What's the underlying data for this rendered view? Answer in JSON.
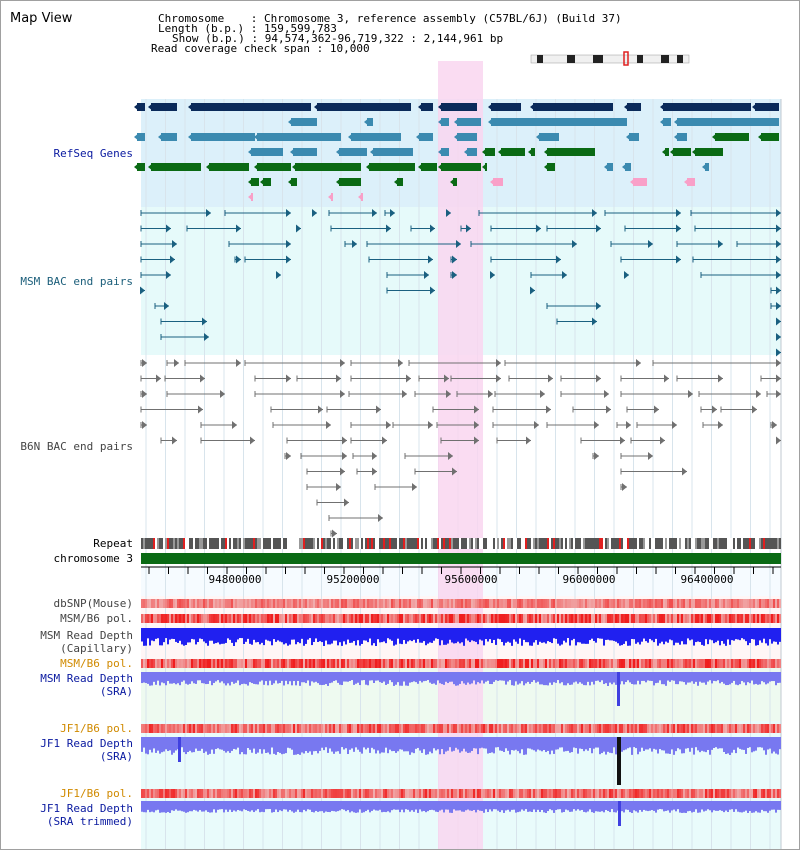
{
  "page": {
    "title": "Map View"
  },
  "info": {
    "chromosome_label": "Chromosome",
    "chromosome_value": "Chromosome 3, reference assembly (C57BL/6J) (Build 37)",
    "length_label": "Length (b.p.)",
    "length_value": "159,599,783",
    "show_label": "Show (b.p.)",
    "show_value": "94,574,362-96,719,322 : 2,144,961 bp",
    "coverage_label": "Read coverage check span",
    "coverage_value": "10,000"
  },
  "tracks": {
    "refseq": "RefSeq Genes",
    "msm_bac": "MSM BAC end pairs",
    "b6n_bac": "B6N BAC end pairs",
    "repeat": "Repeat",
    "chromosome": "chromosome 3",
    "dbsnp": "dbSNP(Mouse)",
    "msm_b6_pol_1": "MSM/B6 pol.",
    "msm_read_depth_cap_1": "MSM Read Depth",
    "msm_read_depth_cap_2": "(Capillary)",
    "msm_b6_pol_2": "MSM/B6 pol.",
    "msm_read_depth_sra_1": "MSM Read Depth",
    "msm_read_depth_sra_2": "(SRA)",
    "jf1_b6_pol_1": "JF1/B6 pol.",
    "jf1_read_depth_sra_1": "JF1 Read Depth",
    "jf1_read_depth_sra_2": "(SRA)",
    "jf1_b6_pol_2": "JF1/B6 pol.",
    "jf1_read_depth_trim_1": "JF1 Read Depth",
    "jf1_read_depth_trim_2": "(SRA trimmed)"
  },
  "axis": {
    "ticks": [
      "94800000",
      "95200000",
      "95600000",
      "96000000",
      "96400000"
    ]
  },
  "colors": {
    "highlight": "#f9d6f0",
    "refseq_bg": "#dcf0fa",
    "msm_bg": "#e6fafa",
    "b6n_bg": "#ffffff",
    "gene_navy": "#0a2a5a",
    "gene_teal": "#3b8ab0",
    "gene_green": "#0a6a14",
    "gene_pink": "#f9a0c8",
    "bac_teal": "#1a6080",
    "bac_gray": "#707070",
    "chromosome_bar": "#0a6a14",
    "pol_red": "#e82020",
    "depth_blue": "#2020f0",
    "depth_lightblue": "#7878f0"
  }
}
